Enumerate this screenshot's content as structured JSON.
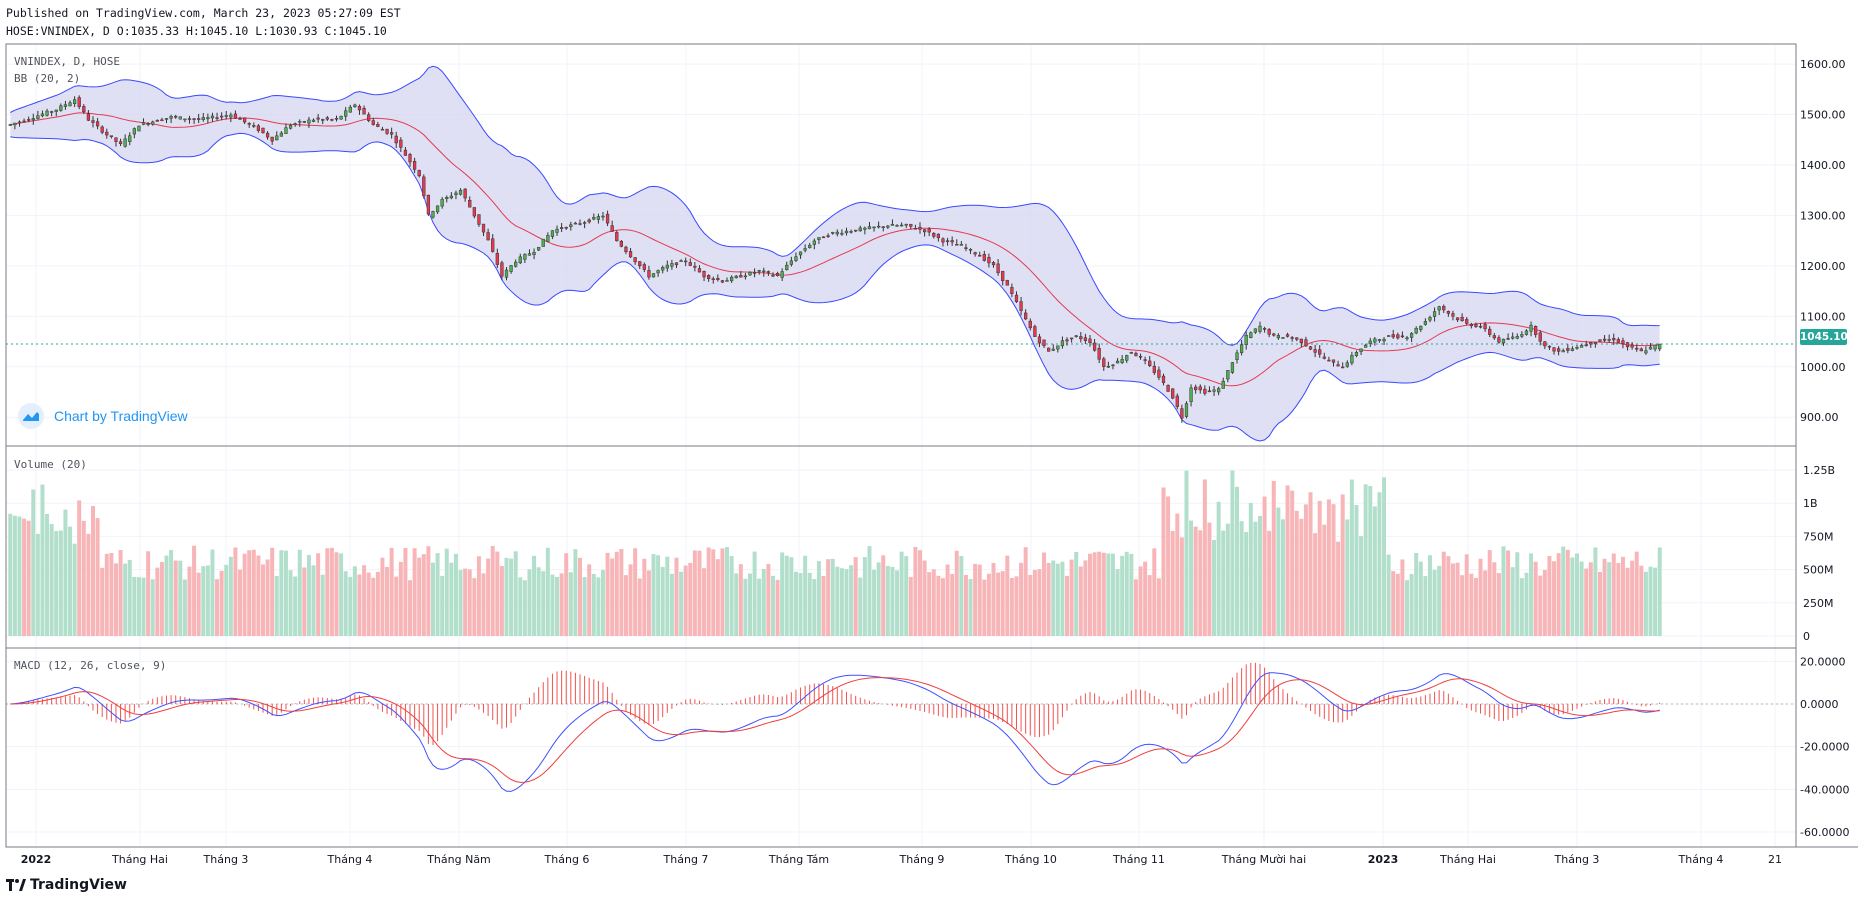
{
  "header": {
    "published": "Published on TradingView.com, March 23, 2023 05:27:09 EST",
    "ohlc": "HOSE:VNINDEX, D O:1035.33 H:1045.10 L:1030.93 C:1045.10"
  },
  "panes": {
    "price_label": "VNINDEX, D, HOSE",
    "bb_label": "BB (20, 2)",
    "volume_label": "Volume (20)",
    "macd_label": "MACD (12, 26, close, 9)"
  },
  "last_price": "1045.10",
  "watermark": {
    "label": "Chart by TradingView",
    "icon": "tradingview-cloud-icon"
  },
  "footer": {
    "logo_text": "TradingView",
    "icon": "tv-logo-icon"
  },
  "colors": {
    "up": "#26a69a",
    "down": "#ef5350",
    "candle_up": "#4caf50",
    "candle_down": "#e53950",
    "bb_band": "#3949ff",
    "bb_basis": "#e53950",
    "bb_fill": "#d6d6f0",
    "vol_up": "#b2dfcb",
    "vol_down": "#f7b5b8",
    "macd_line": "#3f51ff",
    "signal_line": "#ef3f3f",
    "hist": "#ef5350"
  },
  "chart_data": [
    {
      "type": "candlestick",
      "title": "VNINDEX, D, HOSE",
      "ylim": [
        850,
        1620
      ],
      "y_ticks": [
        "1600.00",
        "1500.00",
        "1400.00",
        "1300.00",
        "1200.00",
        "1100.00",
        "1000.00",
        "900.00"
      ],
      "x_ticks": [
        "2022",
        "Tháng Hai",
        "Tháng 3",
        "Tháng 4",
        "Tháng Năm",
        "Tháng 6",
        "Tháng 7",
        "Tháng Tám",
        "Tháng 9",
        "Tháng 10",
        "Tháng 11",
        "Tháng Mười hai",
        "2023",
        "Tháng Hai",
        "Tháng 3",
        "Tháng 4",
        "21"
      ],
      "close_anchors": [
        [
          0,
          1480
        ],
        [
          10,
          1510
        ],
        [
          14,
          1530
        ],
        [
          17,
          1490
        ],
        [
          21,
          1460
        ],
        [
          24,
          1440
        ],
        [
          28,
          1480
        ],
        [
          35,
          1495
        ],
        [
          41,
          1490
        ],
        [
          48,
          1500
        ],
        [
          54,
          1470
        ],
        [
          57,
          1450
        ],
        [
          61,
          1480
        ],
        [
          66,
          1490
        ],
        [
          71,
          1490
        ],
        [
          75,
          1520
        ],
        [
          79,
          1480
        ],
        [
          83,
          1460
        ],
        [
          86,
          1420
        ],
        [
          89,
          1380
        ],
        [
          91,
          1300
        ],
        [
          94,
          1330
        ],
        [
          98,
          1350
        ],
        [
          101,
          1300
        ],
        [
          104,
          1250
        ],
        [
          107,
          1180
        ],
        [
          110,
          1210
        ],
        [
          114,
          1230
        ],
        [
          118,
          1270
        ],
        [
          122,
          1280
        ],
        [
          126,
          1290
        ],
        [
          129,
          1300
        ],
        [
          132,
          1250
        ],
        [
          135,
          1220
        ],
        [
          139,
          1180
        ],
        [
          143,
          1200
        ],
        [
          147,
          1210
        ],
        [
          151,
          1180
        ],
        [
          155,
          1170
        ],
        [
          159,
          1180
        ],
        [
          163,
          1190
        ],
        [
          167,
          1180
        ],
        [
          171,
          1220
        ],
        [
          175,
          1250
        ],
        [
          179,
          1265
        ],
        [
          183,
          1270
        ],
        [
          187,
          1275
        ],
        [
          191,
          1280
        ],
        [
          195,
          1280
        ],
        [
          199,
          1270
        ],
        [
          203,
          1250
        ],
        [
          207,
          1240
        ],
        [
          211,
          1220
        ],
        [
          214,
          1200
        ],
        [
          217,
          1160
        ],
        [
          220,
          1110
        ],
        [
          223,
          1060
        ],
        [
          226,
          1030
        ],
        [
          229,
          1050
        ],
        [
          232,
          1060
        ],
        [
          235,
          1050
        ],
        [
          238,
          1000
        ],
        [
          241,
          1010
        ],
        [
          244,
          1030
        ],
        [
          247,
          1010
        ],
        [
          250,
          980
        ],
        [
          253,
          940
        ],
        [
          255,
          900
        ],
        [
          257,
          960
        ],
        [
          260,
          950
        ],
        [
          263,
          955
        ],
        [
          266,
          1010
        ],
        [
          269,
          1060
        ],
        [
          272,
          1080
        ],
        [
          275,
          1060
        ],
        [
          278,
          1060
        ],
        [
          281,
          1050
        ],
        [
          284,
          1030
        ],
        [
          287,
          1010
        ],
        [
          290,
          1000
        ],
        [
          293,
          1030
        ],
        [
          296,
          1050
        ],
        [
          300,
          1060
        ],
        [
          304,
          1060
        ],
        [
          308,
          1090
        ],
        [
          311,
          1120
        ],
        [
          314,
          1100
        ],
        [
          317,
          1085
        ],
        [
          320,
          1080
        ],
        [
          324,
          1050
        ],
        [
          328,
          1060
        ],
        [
          331,
          1080
        ],
        [
          334,
          1040
        ],
        [
          337,
          1030
        ],
        [
          341,
          1040
        ],
        [
          345,
          1050
        ],
        [
          349,
          1055
        ],
        [
          352,
          1040
        ],
        [
          355,
          1030
        ],
        [
          359,
          1045
        ]
      ],
      "last_close": 1045.1
    },
    {
      "type": "bar",
      "title": "Volume (20)",
      "ylim": [
        0,
        1350
      ],
      "y_ticks": [
        "1.25B",
        "1B",
        "750M",
        "500M",
        "250M",
        "0"
      ],
      "unit": "M"
    },
    {
      "type": "line",
      "title": "MACD (12, 26, close, 9)",
      "ylim": [
        -66,
        22
      ],
      "y_ticks": [
        "20.0000",
        "0.0000",
        "-20.0000",
        "-40.0000",
        "-60.0000"
      ],
      "series": [
        {
          "name": "MACD"
        },
        {
          "name": "Signal"
        },
        {
          "name": "Histogram"
        }
      ]
    }
  ]
}
